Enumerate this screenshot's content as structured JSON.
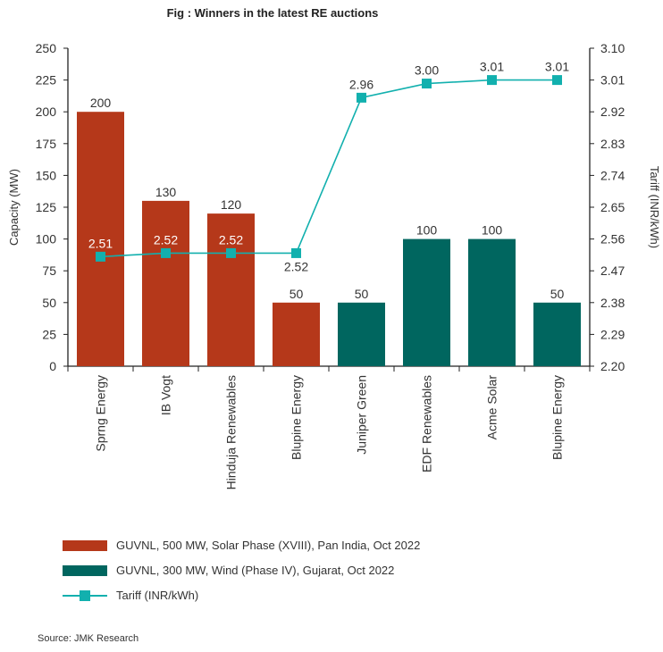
{
  "chart_data": {
    "type": "bar",
    "title": "Fig : Winners in the latest RE auctions",
    "categories": [
      "Sprng Energy",
      "IB Vogt",
      "Hinduja Renewables",
      "Blupine Energy",
      "Juniper Green",
      "EDF Renewables",
      "Acme Solar",
      "Blupine Energy"
    ],
    "series": [
      {
        "name": "GUVNL, 500 MW, Solar Phase (XVIII), Pan India, Oct 2022",
        "type": "bar",
        "color": "#b5381a",
        "values": [
          200,
          130,
          120,
          50,
          null,
          null,
          null,
          null
        ],
        "labels": [
          "200",
          "130",
          "120",
          "50",
          "",
          "",
          "",
          ""
        ]
      },
      {
        "name": "GUVNL, 300 MW, Wind (Phase IV), Gujarat, Oct 2022",
        "type": "bar",
        "color": "#00665f",
        "values": [
          null,
          null,
          null,
          null,
          50,
          100,
          100,
          50
        ],
        "labels": [
          "",
          "",
          "",
          "",
          "50",
          "100",
          "100",
          "50"
        ]
      },
      {
        "name": "Tariff (INR/kWh)",
        "type": "line",
        "axis": "right",
        "color": "#12b0ae",
        "values": [
          2.51,
          2.52,
          2.52,
          2.52,
          2.96,
          3.0,
          3.01,
          3.01
        ],
        "labels": [
          "2.51",
          "2.52",
          "2.52",
          "2.52",
          "2.96",
          "3.00",
          "3.01",
          "3.01"
        ]
      }
    ],
    "ylabel": "Capacity (MW)",
    "ylim": [
      0,
      250
    ],
    "yticks": [
      "0",
      "25",
      "50",
      "75",
      "100",
      "125",
      "150",
      "175",
      "200",
      "225",
      "250"
    ],
    "y2label": "Tariff (INR/kWh)",
    "y2lim": [
      2.2,
      3.1
    ],
    "y2ticks": [
      "2.20",
      "2.29",
      "2.38",
      "2.47",
      "2.56",
      "2.65",
      "2.74",
      "2.83",
      "2.92",
      "3.01",
      "3.10"
    ],
    "xlabel": "",
    "legend_position": "bottom-left",
    "grid": false
  },
  "source": "Source: JMK Research"
}
